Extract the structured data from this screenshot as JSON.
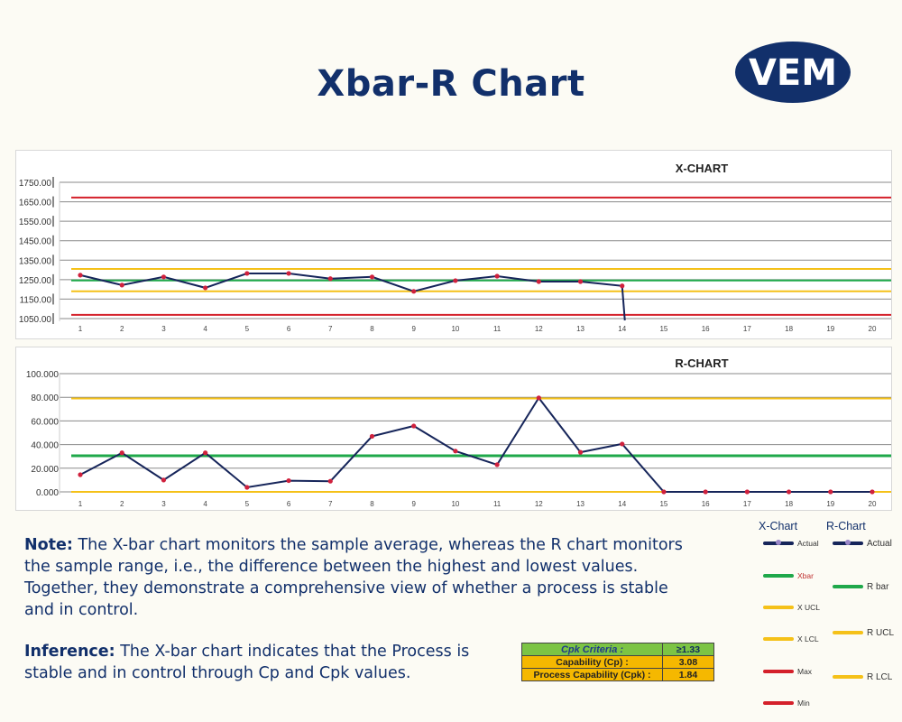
{
  "page": {
    "title": "Xbar-R Chart",
    "logo_text": "VEM"
  },
  "colors": {
    "actual": "#16255a",
    "marker": "#d0213d",
    "center": "#1fa84a",
    "limits": "#f5c118",
    "minmax": "#d4202a",
    "grid": "#8a8a8a",
    "brand": "#12306b"
  },
  "chart_data": [
    {
      "type": "line",
      "title": "X-CHART",
      "categories": [
        "1",
        "2",
        "3",
        "4",
        "5",
        "6",
        "7",
        "8",
        "9",
        "10",
        "11",
        "12",
        "13",
        "14",
        "15",
        "16",
        "17",
        "18",
        "19",
        "20"
      ],
      "yticks": [
        "1750.00",
        "1650.00",
        "1550.00",
        "1450.00",
        "1350.00",
        "1250.00",
        "1150.00",
        "1050.00"
      ],
      "ylim": [
        1050,
        1750
      ],
      "grid": true,
      "series": [
        {
          "name": "Actual",
          "values": [
            1273,
            1222,
            1264,
            1208,
            1282,
            1282,
            1255,
            1264,
            1190,
            1245,
            1268,
            1240,
            1240,
            1218,
            null,
            null,
            null,
            null,
            null,
            null
          ],
          "drop_after_last_to": 1000
        },
        {
          "name": "Xbar",
          "constant": 1246
        },
        {
          "name": "X UCL",
          "constant": 1305
        },
        {
          "name": "X LCL",
          "constant": 1190
        },
        {
          "name": "Max",
          "constant": 1672
        },
        {
          "name": "Min",
          "constant": 1069
        }
      ]
    },
    {
      "type": "line",
      "title": "R-CHART",
      "categories": [
        "1",
        "2",
        "3",
        "4",
        "5",
        "6",
        "7",
        "8",
        "9",
        "10",
        "11",
        "12",
        "13",
        "14",
        "15",
        "16",
        "17",
        "18",
        "19",
        "20"
      ],
      "yticks": [
        "100.000",
        "80.000",
        "60.000",
        "40.000",
        "20.000",
        "0.000"
      ],
      "ylim": [
        0,
        100
      ],
      "grid": true,
      "series": [
        {
          "name": "Actual",
          "values": [
            14.5,
            33,
            10,
            33,
            3.8,
            9.5,
            9,
            47,
            55.7,
            34.5,
            23,
            79.5,
            33.5,
            40.5,
            0,
            0,
            0,
            0,
            0,
            0
          ]
        },
        {
          "name": "R bar",
          "constant": 30.5
        },
        {
          "name": "R UCL",
          "constant": 79
        },
        {
          "name": "R LCL",
          "constant": 0
        }
      ]
    }
  ],
  "legend": {
    "x_header": "X-Chart",
    "r_header": "R-Chart",
    "x_items": [
      "Actual",
      "Xbar",
      "X UCL",
      "X LCL",
      "Max",
      "Min"
    ],
    "r_items": [
      "Actual",
      "R bar",
      "R UCL",
      "R LCL"
    ]
  },
  "note": {
    "label": "Note:",
    "text": " The X-bar chart monitors the sample average, whereas the R chart monitors the sample range, i.e., the difference between the highest and lowest values. Together, they demonstrate a comprehensive view of whether a process is stable and in control."
  },
  "inference": {
    "label": "Inference:",
    "text": " The X-bar chart indicates that the Process is stable and in control through Cp and Cpk values."
  },
  "cpk_table": {
    "rows": [
      {
        "label": "Cpk Criteria :",
        "value": "≥1.33"
      },
      {
        "label": "Capability (Cp) :",
        "value": "3.08"
      },
      {
        "label": "Process Capability (Cpk) :",
        "value": "1.84"
      }
    ]
  }
}
